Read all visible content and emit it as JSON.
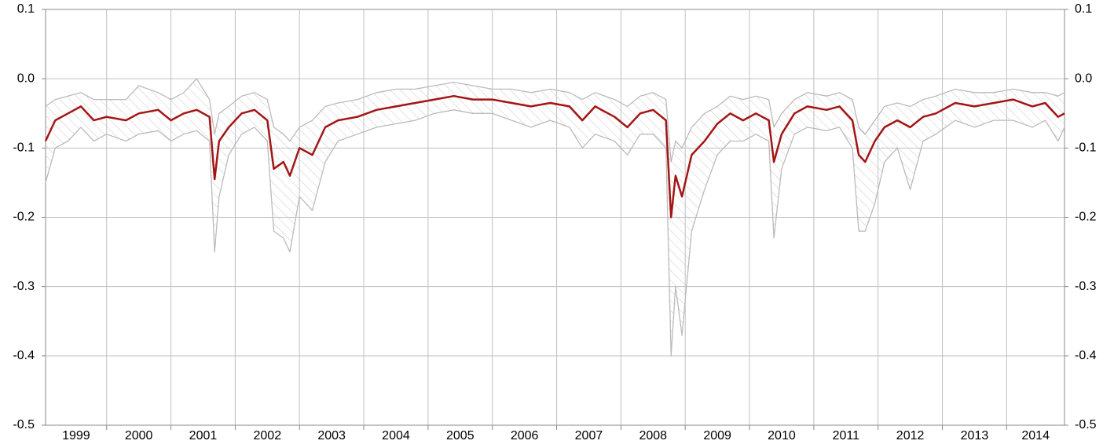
{
  "chart_data": {
    "type": "line",
    "x": [
      1999.05,
      1999.2,
      1999.4,
      1999.6,
      1999.8,
      2000.0,
      2000.3,
      2000.5,
      2000.8,
      2001.0,
      2001.2,
      2001.4,
      2001.6,
      2001.68,
      2001.75,
      2001.9,
      2002.1,
      2002.3,
      2002.5,
      2002.6,
      2002.75,
      2002.85,
      2003.0,
      2003.2,
      2003.4,
      2003.6,
      2003.9,
      2004.2,
      2004.5,
      2004.8,
      2005.1,
      2005.4,
      2005.7,
      2006.0,
      2006.3,
      2006.6,
      2006.9,
      2007.2,
      2007.4,
      2007.6,
      2007.9,
      2008.1,
      2008.3,
      2008.5,
      2008.7,
      2008.78,
      2008.85,
      2008.95,
      2009.1,
      2009.3,
      2009.5,
      2009.7,
      2009.9,
      2010.1,
      2010.3,
      2010.38,
      2010.5,
      2010.7,
      2010.9,
      2011.2,
      2011.4,
      2011.6,
      2011.7,
      2011.8,
      2011.95,
      2012.1,
      2012.3,
      2012.5,
      2012.7,
      2012.9,
      2013.2,
      2013.5,
      2013.8,
      2014.1,
      2014.4,
      2014.6,
      2014.8,
      2014.9
    ],
    "series": [
      {
        "color": "#a31515",
        "values": [
          -0.09,
          -0.06,
          -0.05,
          -0.04,
          -0.06,
          -0.055,
          -0.06,
          -0.05,
          -0.045,
          -0.06,
          -0.05,
          -0.045,
          -0.055,
          -0.145,
          -0.09,
          -0.07,
          -0.05,
          -0.045,
          -0.06,
          -0.13,
          -0.12,
          -0.14,
          -0.1,
          -0.11,
          -0.07,
          -0.06,
          -0.055,
          -0.045,
          -0.04,
          -0.035,
          -0.03,
          -0.025,
          -0.03,
          -0.03,
          -0.035,
          -0.04,
          -0.035,
          -0.04,
          -0.06,
          -0.04,
          -0.055,
          -0.07,
          -0.05,
          -0.045,
          -0.06,
          -0.2,
          -0.14,
          -0.17,
          -0.11,
          -0.09,
          -0.065,
          -0.05,
          -0.06,
          -0.05,
          -0.06,
          -0.12,
          -0.08,
          -0.05,
          -0.04,
          -0.045,
          -0.04,
          -0.06,
          -0.11,
          -0.12,
          -0.09,
          -0.07,
          -0.06,
          -0.07,
          -0.055,
          -0.05,
          -0.035,
          -0.04,
          -0.035,
          -0.03,
          -0.04,
          -0.035,
          -0.055,
          -0.05
        ]
      },
      {
        "color": "#bbbbbb",
        "values": [
          -0.04,
          -0.03,
          -0.025,
          -0.02,
          -0.03,
          -0.03,
          -0.03,
          -0.01,
          -0.02,
          -0.03,
          -0.02,
          0.0,
          -0.03,
          -0.08,
          -0.05,
          -0.04,
          -0.025,
          -0.02,
          -0.03,
          -0.07,
          -0.08,
          -0.09,
          -0.07,
          -0.06,
          -0.04,
          -0.035,
          -0.03,
          -0.02,
          -0.015,
          -0.015,
          -0.01,
          -0.005,
          -0.01,
          -0.015,
          -0.015,
          -0.02,
          -0.015,
          -0.02,
          -0.03,
          -0.02,
          -0.03,
          -0.04,
          -0.025,
          -0.02,
          -0.03,
          -0.12,
          -0.09,
          -0.1,
          -0.07,
          -0.05,
          -0.04,
          -0.025,
          -0.03,
          -0.025,
          -0.03,
          -0.07,
          -0.05,
          -0.03,
          -0.02,
          -0.025,
          -0.02,
          -0.03,
          -0.07,
          -0.08,
          -0.06,
          -0.04,
          -0.035,
          -0.04,
          -0.03,
          -0.025,
          -0.015,
          -0.02,
          -0.02,
          -0.015,
          -0.02,
          -0.02,
          -0.025,
          -0.02
        ]
      },
      {
        "color": "#bbbbbb",
        "values": [
          -0.15,
          -0.1,
          -0.09,
          -0.07,
          -0.09,
          -0.08,
          -0.09,
          -0.08,
          -0.075,
          -0.09,
          -0.08,
          -0.075,
          -0.09,
          -0.25,
          -0.17,
          -0.11,
          -0.08,
          -0.07,
          -0.09,
          -0.22,
          -0.23,
          -0.25,
          -0.17,
          -0.19,
          -0.12,
          -0.09,
          -0.08,
          -0.07,
          -0.065,
          -0.06,
          -0.05,
          -0.045,
          -0.05,
          -0.05,
          -0.06,
          -0.07,
          -0.06,
          -0.07,
          -0.1,
          -0.08,
          -0.09,
          -0.11,
          -0.08,
          -0.08,
          -0.1,
          -0.4,
          -0.3,
          -0.37,
          -0.22,
          -0.16,
          -0.11,
          -0.09,
          -0.09,
          -0.08,
          -0.09,
          -0.23,
          -0.13,
          -0.08,
          -0.07,
          -0.075,
          -0.07,
          -0.1,
          -0.22,
          -0.22,
          -0.18,
          -0.12,
          -0.1,
          -0.16,
          -0.09,
          -0.08,
          -0.06,
          -0.07,
          -0.06,
          -0.06,
          -0.07,
          -0.06,
          -0.09,
          -0.07
        ]
      }
    ],
    "band": true,
    "xlim": [
      1999.05,
      2014.9
    ],
    "xticks": [
      1999,
      2000,
      2001,
      2002,
      2003,
      2004,
      2005,
      2006,
      2007,
      2008,
      2009,
      2010,
      2011,
      2012,
      2013,
      2014
    ],
    "ylim": [
      -0.5,
      0.1
    ],
    "yticks": [
      -0.5,
      -0.4,
      -0.3,
      -0.2,
      -0.1,
      {
        "value": 0,
        "label": "0.0"
      },
      0.1
    ],
    "grid": true
  }
}
